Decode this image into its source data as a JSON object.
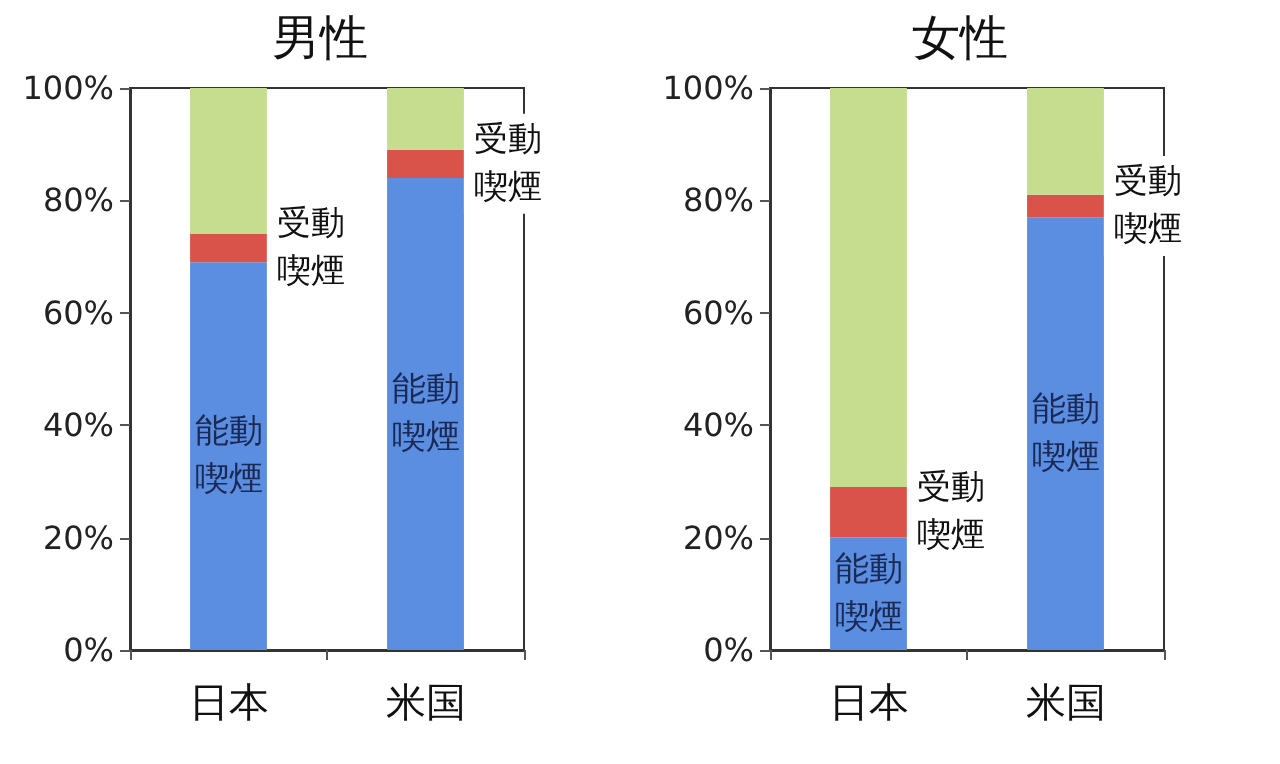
{
  "chart_data": [
    {
      "type": "bar",
      "title": "男性",
      "categories": [
        "日本",
        "米国"
      ],
      "stacked": true,
      "ylim": [
        0,
        100
      ],
      "yticks": [
        {
          "value": 0,
          "label": "0%"
        },
        {
          "value": 20,
          "label": "20%"
        },
        {
          "value": 40,
          "label": "40%"
        },
        {
          "value": 60,
          "label": "60%"
        },
        {
          "value": 80,
          "label": "80%"
        },
        {
          "value": 100,
          "label": "100%"
        }
      ],
      "grid": false,
      "legend": false,
      "series": [
        {
          "name": "能動喫煙",
          "color": "#5b8de0",
          "values": [
            69,
            84
          ]
        },
        {
          "name": "受動喫煙",
          "color": "#d9534a",
          "values": [
            5,
            5
          ]
        },
        {
          "color": "#c6dc8e",
          "values": [
            26,
            11
          ]
        }
      ]
    },
    {
      "type": "bar",
      "title": "女性",
      "categories": [
        "日本",
        "米国"
      ],
      "stacked": true,
      "ylim": [
        0,
        100
      ],
      "yticks": [
        {
          "value": 0,
          "label": "0%"
        },
        {
          "value": 20,
          "label": "20%"
        },
        {
          "value": 40,
          "label": "40%"
        },
        {
          "value": 60,
          "label": "60%"
        },
        {
          "value": 80,
          "label": "80%"
        },
        {
          "value": 100,
          "label": "100%"
        }
      ],
      "grid": false,
      "legend": false,
      "series": [
        {
          "name": "能動喫煙",
          "color": "#5b8de0",
          "values": [
            20,
            77
          ]
        },
        {
          "name": "受動喫煙",
          "color": "#d9534a",
          "values": [
            9,
            4
          ]
        },
        {
          "color": "#c6dc8e",
          "values": [
            71,
            19
          ]
        }
      ]
    }
  ]
}
